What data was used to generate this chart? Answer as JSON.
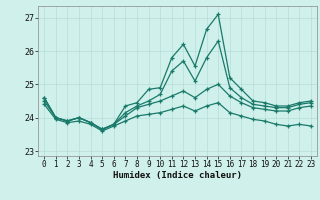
{
  "title": "",
  "xlabel": "Humidex (Indice chaleur)",
  "bg_color": "#cff0eb",
  "grid_color": "#b8ddd8",
  "line_color": "#1a7a6a",
  "xlim": [
    -0.5,
    23.5
  ],
  "ylim": [
    22.85,
    27.35
  ],
  "yticks": [
    23,
    24,
    25,
    26,
    27
  ],
  "xticks": [
    0,
    1,
    2,
    3,
    4,
    5,
    6,
    7,
    8,
    9,
    10,
    11,
    12,
    13,
    14,
    15,
    16,
    17,
    18,
    19,
    20,
    21,
    22,
    23
  ],
  "lines": [
    {
      "y": [
        24.6,
        24.0,
        23.9,
        24.0,
        23.85,
        23.65,
        23.8,
        24.35,
        24.45,
        24.85,
        24.9,
        25.8,
        26.2,
        25.55,
        26.65,
        27.1,
        25.2,
        24.85,
        24.5,
        24.45,
        24.35,
        24.35,
        24.45,
        24.5
      ]
    },
    {
      "y": [
        24.6,
        24.0,
        23.9,
        24.0,
        23.85,
        23.65,
        23.8,
        24.15,
        24.35,
        24.5,
        24.7,
        25.4,
        25.7,
        25.1,
        25.8,
        26.3,
        24.9,
        24.6,
        24.4,
        24.35,
        24.3,
        24.3,
        24.4,
        24.45
      ]
    },
    {
      "y": [
        24.5,
        24.0,
        23.9,
        24.0,
        23.85,
        23.65,
        23.8,
        24.05,
        24.3,
        24.4,
        24.5,
        24.65,
        24.8,
        24.6,
        24.85,
        25.0,
        24.65,
        24.45,
        24.3,
        24.25,
        24.2,
        24.2,
        24.3,
        24.35
      ]
    },
    {
      "y": [
        24.4,
        23.95,
        23.85,
        23.9,
        23.8,
        23.6,
        23.75,
        23.9,
        24.05,
        24.1,
        24.15,
        24.25,
        24.35,
        24.2,
        24.35,
        24.45,
        24.15,
        24.05,
        23.95,
        23.9,
        23.8,
        23.75,
        23.8,
        23.75
      ]
    }
  ]
}
